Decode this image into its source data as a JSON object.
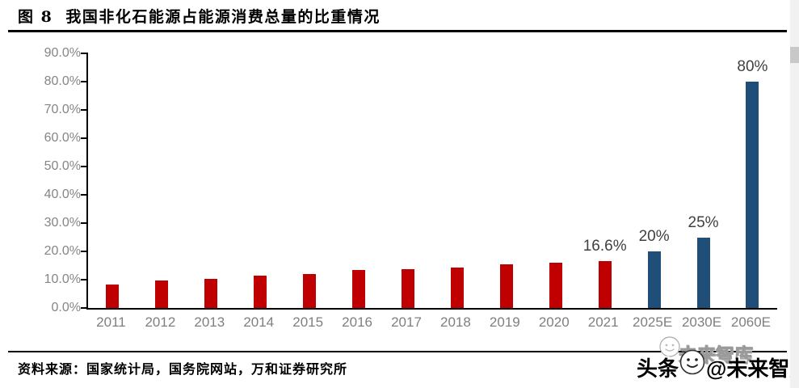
{
  "header": {
    "figure_label": "图 8",
    "title": "我国非化石能源占能源消费总量的比重情况"
  },
  "chart_data": {
    "type": "bar",
    "title": "我国非化石能源占能源消费总量的比重情况",
    "xlabel": "",
    "ylabel": "",
    "ylim": [
      0,
      90
    ],
    "y_tick_labels": [
      "90.0%",
      "80.0%",
      "70.0%",
      "60.0%",
      "50.0%",
      "40.0%",
      "30.0%",
      "20.0%",
      "10.0%",
      "0.0%"
    ],
    "grid": false,
    "legend_position": "none",
    "categories": [
      "2011",
      "2012",
      "2013",
      "2014",
      "2015",
      "2016",
      "2017",
      "2018",
      "2019",
      "2020",
      "2021",
      "2025E",
      "2030E",
      "2060E"
    ],
    "values": [
      8.4,
      9.7,
      10.2,
      11.3,
      12.1,
      13.3,
      13.8,
      14.3,
      15.3,
      15.9,
      16.6,
      20,
      25,
      80
    ],
    "bar_colors_by_period": {
      "historical": "#C00000",
      "forecast": "#1F4E79"
    },
    "series": [
      {
        "category": "2011",
        "value": 8.4,
        "period": "historical",
        "data_label": ""
      },
      {
        "category": "2012",
        "value": 9.7,
        "period": "historical",
        "data_label": ""
      },
      {
        "category": "2013",
        "value": 10.2,
        "period": "historical",
        "data_label": ""
      },
      {
        "category": "2014",
        "value": 11.3,
        "period": "historical",
        "data_label": ""
      },
      {
        "category": "2015",
        "value": 12.1,
        "period": "historical",
        "data_label": ""
      },
      {
        "category": "2016",
        "value": 13.3,
        "period": "historical",
        "data_label": ""
      },
      {
        "category": "2017",
        "value": 13.8,
        "period": "historical",
        "data_label": ""
      },
      {
        "category": "2018",
        "value": 14.3,
        "period": "historical",
        "data_label": ""
      },
      {
        "category": "2019",
        "value": 15.3,
        "period": "historical",
        "data_label": ""
      },
      {
        "category": "2020",
        "value": 15.9,
        "period": "historical",
        "data_label": ""
      },
      {
        "category": "2021",
        "value": 16.6,
        "period": "historical",
        "data_label": "16.6%"
      },
      {
        "category": "2025E",
        "value": 20,
        "period": "forecast",
        "data_label": "20%"
      },
      {
        "category": "2030E",
        "value": 25,
        "period": "forecast",
        "data_label": "25%"
      },
      {
        "category": "2060E",
        "value": 80,
        "period": "forecast",
        "data_label": "80%"
      }
    ]
  },
  "footer": {
    "source_text": "资料来源：国家统计局，国务院网站，万和证券研究所"
  },
  "watermark": {
    "prefix": "头条",
    "suffix": "@未来智库",
    "ghost_text": "未来智库",
    "icon": "toutiao-smiley-icon"
  },
  "colors": {
    "historical_bar": "#C00000",
    "forecast_bar": "#1F4E79",
    "axis_label": "#858585",
    "data_label": "#404040",
    "rule": "#000000"
  }
}
